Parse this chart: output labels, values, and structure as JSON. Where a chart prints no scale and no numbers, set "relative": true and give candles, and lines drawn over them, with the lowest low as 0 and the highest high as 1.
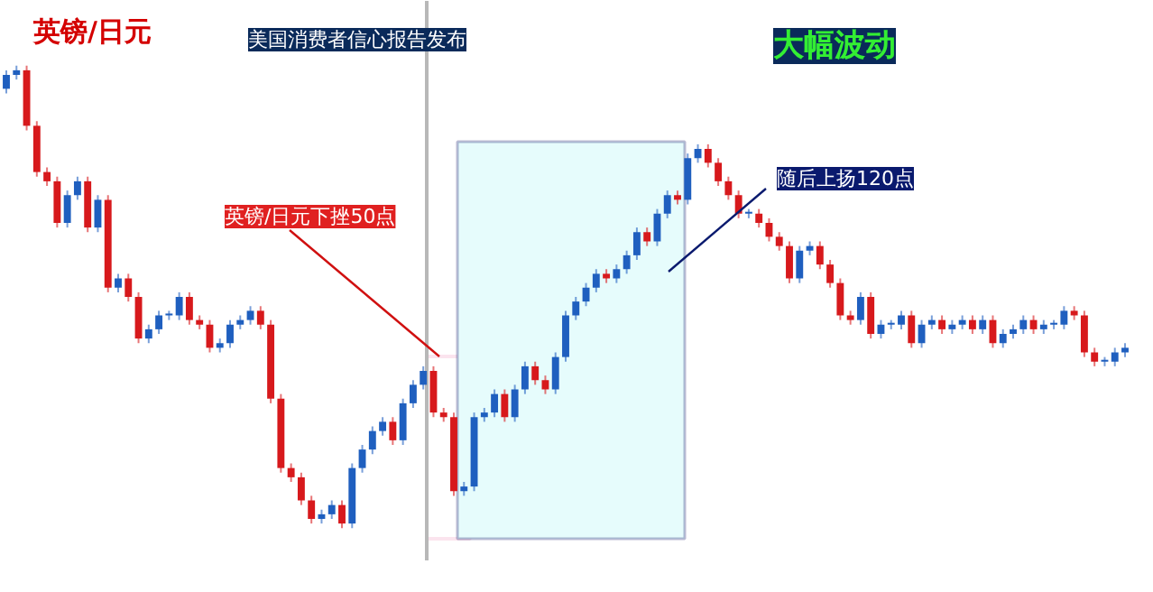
{
  "chart_data": {
    "type": "candlestick",
    "title": "英镑/日元",
    "relative": true,
    "tick_labels": false,
    "grid": false,
    "categories": [
      null,
      null,
      null,
      null,
      null,
      null,
      null,
      null,
      null,
      null,
      null,
      null,
      null,
      null,
      null,
      null,
      null,
      null,
      null,
      null,
      null,
      null,
      null,
      null,
      null,
      null,
      null,
      null,
      null,
      null,
      null,
      null,
      null,
      null,
      null,
      null,
      null,
      null,
      null,
      null,
      null,
      null,
      null,
      null,
      null,
      null,
      null,
      null,
      null,
      null,
      null,
      null,
      null,
      null,
      null,
      null,
      null,
      null,
      null,
      null,
      null,
      null,
      null,
      null,
      null,
      null,
      null,
      null,
      null,
      null,
      null,
      null,
      null,
      null,
      null,
      null,
      null,
      null,
      null,
      null,
      null,
      null,
      null,
      null,
      null,
      null,
      null,
      null,
      null,
      null,
      null,
      null,
      null,
      null,
      null,
      null,
      null,
      null,
      null,
      null,
      null,
      null,
      null,
      null,
      null,
      null,
      null,
      null,
      null,
      null,
      null
    ],
    "ohlc": [
      [
        0.95,
        0.99,
        0.94,
        0.98
      ],
      [
        0.98,
        1.0,
        0.97,
        0.99
      ],
      [
        0.99,
        1.0,
        0.86,
        0.87
      ],
      [
        0.87,
        0.88,
        0.76,
        0.77
      ],
      [
        0.77,
        0.78,
        0.74,
        0.75
      ],
      [
        0.75,
        0.76,
        0.65,
        0.66
      ],
      [
        0.66,
        0.73,
        0.65,
        0.72
      ],
      [
        0.72,
        0.76,
        0.71,
        0.75
      ],
      [
        0.75,
        0.76,
        0.64,
        0.65
      ],
      [
        0.65,
        0.72,
        0.64,
        0.71
      ],
      [
        0.71,
        0.72,
        0.51,
        0.52
      ],
      [
        0.52,
        0.55,
        0.51,
        0.54
      ],
      [
        0.54,
        0.55,
        0.49,
        0.5
      ],
      [
        0.5,
        0.51,
        0.4,
        0.41
      ],
      [
        0.41,
        0.44,
        0.4,
        0.43
      ],
      [
        0.43,
        0.47,
        0.42,
        0.46
      ],
      [
        0.46,
        0.47,
        0.45,
        0.46
      ],
      [
        0.46,
        0.51,
        0.45,
        0.5
      ],
      [
        0.5,
        0.51,
        0.44,
        0.45
      ],
      [
        0.45,
        0.46,
        0.43,
        0.44
      ],
      [
        0.44,
        0.45,
        0.38,
        0.39
      ],
      [
        0.39,
        0.41,
        0.38,
        0.4
      ],
      [
        0.4,
        0.45,
        0.39,
        0.44
      ],
      [
        0.44,
        0.46,
        0.43,
        0.45
      ],
      [
        0.45,
        0.48,
        0.44,
        0.47
      ],
      [
        0.47,
        0.48,
        0.43,
        0.44
      ],
      [
        0.44,
        0.45,
        0.27,
        0.28
      ],
      [
        0.28,
        0.29,
        0.12,
        0.13
      ],
      [
        0.13,
        0.14,
        0.1,
        0.11
      ],
      [
        0.11,
        0.12,
        0.05,
        0.06
      ],
      [
        0.06,
        0.07,
        0.01,
        0.02
      ],
      [
        0.02,
        0.04,
        0.01,
        0.03
      ],
      [
        0.03,
        0.06,
        0.02,
        0.05
      ],
      [
        0.05,
        0.06,
        0.0,
        0.01
      ],
      [
        0.01,
        0.14,
        0.0,
        0.13
      ],
      [
        0.13,
        0.18,
        0.12,
        0.17
      ],
      [
        0.17,
        0.22,
        0.16,
        0.21
      ],
      [
        0.21,
        0.24,
        0.2,
        0.23
      ],
      [
        0.23,
        0.24,
        0.18,
        0.19
      ],
      [
        0.19,
        0.28,
        0.18,
        0.27
      ],
      [
        0.27,
        0.32,
        0.26,
        0.31
      ],
      [
        0.31,
        0.35,
        0.3,
        0.34
      ],
      [
        0.34,
        0.35,
        0.24,
        0.25
      ],
      [
        0.25,
        0.26,
        0.23,
        0.24
      ],
      [
        0.24,
        0.25,
        0.07,
        0.08
      ],
      [
        0.08,
        0.1,
        0.07,
        0.09
      ],
      [
        0.09,
        0.25,
        0.08,
        0.24
      ],
      [
        0.24,
        0.26,
        0.23,
        0.25
      ],
      [
        0.25,
        0.3,
        0.24,
        0.29
      ],
      [
        0.29,
        0.3,
        0.23,
        0.24
      ],
      [
        0.24,
        0.31,
        0.23,
        0.3
      ],
      [
        0.3,
        0.36,
        0.29,
        0.35
      ],
      [
        0.35,
        0.36,
        0.31,
        0.32
      ],
      [
        0.32,
        0.33,
        0.29,
        0.3
      ],
      [
        0.3,
        0.38,
        0.29,
        0.37
      ],
      [
        0.37,
        0.47,
        0.36,
        0.46
      ],
      [
        0.46,
        0.5,
        0.45,
        0.49
      ],
      [
        0.49,
        0.53,
        0.48,
        0.52
      ],
      [
        0.52,
        0.56,
        0.51,
        0.55
      ],
      [
        0.55,
        0.56,
        0.53,
        0.54
      ],
      [
        0.54,
        0.57,
        0.53,
        0.56
      ],
      [
        0.56,
        0.6,
        0.55,
        0.59
      ],
      [
        0.59,
        0.65,
        0.58,
        0.64
      ],
      [
        0.64,
        0.65,
        0.61,
        0.62
      ],
      [
        0.62,
        0.69,
        0.61,
        0.68
      ],
      [
        0.68,
        0.73,
        0.67,
        0.72
      ],
      [
        0.72,
        0.73,
        0.7,
        0.71
      ],
      [
        0.71,
        0.81,
        0.7,
        0.8
      ],
      [
        0.8,
        0.83,
        0.79,
        0.82
      ],
      [
        0.82,
        0.83,
        0.78,
        0.79
      ],
      [
        0.79,
        0.8,
        0.74,
        0.75
      ],
      [
        0.75,
        0.76,
        0.71,
        0.72
      ],
      [
        0.72,
        0.73,
        0.67,
        0.68
      ],
      [
        0.68,
        0.69,
        0.67,
        0.68
      ],
      [
        0.68,
        0.69,
        0.65,
        0.66
      ],
      [
        0.66,
        0.67,
        0.62,
        0.63
      ],
      [
        0.63,
        0.64,
        0.6,
        0.61
      ],
      [
        0.61,
        0.62,
        0.53,
        0.54
      ],
      [
        0.54,
        0.61,
        0.53,
        0.6
      ],
      [
        0.6,
        0.62,
        0.59,
        0.61
      ],
      [
        0.61,
        0.62,
        0.56,
        0.57
      ],
      [
        0.57,
        0.58,
        0.52,
        0.53
      ],
      [
        0.53,
        0.54,
        0.45,
        0.46
      ],
      [
        0.46,
        0.47,
        0.44,
        0.45
      ],
      [
        0.45,
        0.51,
        0.44,
        0.5
      ],
      [
        0.5,
        0.51,
        0.41,
        0.42
      ],
      [
        0.42,
        0.45,
        0.41,
        0.44
      ],
      [
        0.44,
        0.45,
        0.43,
        0.44
      ],
      [
        0.44,
        0.47,
        0.43,
        0.46
      ],
      [
        0.46,
        0.47,
        0.39,
        0.4
      ],
      [
        0.4,
        0.45,
        0.39,
        0.44
      ],
      [
        0.44,
        0.46,
        0.43,
        0.45
      ],
      [
        0.45,
        0.46,
        0.42,
        0.43
      ],
      [
        0.43,
        0.45,
        0.42,
        0.44
      ],
      [
        0.44,
        0.46,
        0.43,
        0.45
      ],
      [
        0.45,
        0.46,
        0.42,
        0.43
      ],
      [
        0.43,
        0.46,
        0.42,
        0.45
      ],
      [
        0.45,
        0.46,
        0.39,
        0.4
      ],
      [
        0.4,
        0.43,
        0.39,
        0.42
      ],
      [
        0.42,
        0.44,
        0.41,
        0.43
      ],
      [
        0.43,
        0.46,
        0.42,
        0.45
      ],
      [
        0.45,
        0.46,
        0.42,
        0.43
      ],
      [
        0.43,
        0.45,
        0.42,
        0.44
      ],
      [
        0.44,
        0.45,
        0.43,
        0.44
      ],
      [
        0.44,
        0.48,
        0.43,
        0.47
      ],
      [
        0.47,
        0.48,
        0.45,
        0.46
      ],
      [
        0.46,
        0.47,
        0.37,
        0.38
      ],
      [
        0.38,
        0.39,
        0.35,
        0.36
      ],
      [
        0.36,
        0.37,
        0.35,
        0.36
      ],
      [
        0.36,
        0.39,
        0.35,
        0.38
      ],
      [
        0.38,
        0.4,
        0.37,
        0.39
      ]
    ],
    "colors": [
      "#1f5fbf",
      "#1f5fbf",
      "#d7191c",
      "#d7191c",
      "#d7191c",
      "#d7191c",
      "#1f5fbf",
      "#1f5fbf",
      "#d7191c",
      "#1f5fbf",
      "#d7191c",
      "#1f5fbf",
      "#d7191c",
      "#d7191c",
      "#1f5fbf",
      "#1f5fbf",
      "#1f5fbf",
      "#1f5fbf",
      "#d7191c",
      "#d7191c",
      "#d7191c",
      "#1f5fbf",
      "#1f5fbf",
      "#1f5fbf",
      "#1f5fbf",
      "#d7191c",
      "#d7191c",
      "#d7191c",
      "#d7191c",
      "#d7191c",
      "#d7191c",
      "#1f5fbf",
      "#1f5fbf",
      "#d7191c",
      "#1f5fbf",
      "#1f5fbf",
      "#1f5fbf",
      "#1f5fbf",
      "#d7191c",
      "#1f5fbf",
      "#1f5fbf",
      "#1f5fbf",
      "#d7191c",
      "#d7191c",
      "#d7191c",
      "#1f5fbf",
      "#1f5fbf",
      "#1f5fbf",
      "#1f5fbf",
      "#d7191c",
      "#1f5fbf",
      "#1f5fbf",
      "#d7191c",
      "#d7191c",
      "#1f5fbf",
      "#1f5fbf",
      "#1f5fbf",
      "#1f5fbf",
      "#1f5fbf",
      "#d7191c",
      "#1f5fbf",
      "#1f5fbf",
      "#1f5fbf",
      "#d7191c",
      "#1f5fbf",
      "#1f5fbf",
      "#d7191c",
      "#1f5fbf",
      "#1f5fbf",
      "#d7191c",
      "#d7191c",
      "#d7191c",
      "#d7191c",
      "#1f5fbf",
      "#d7191c",
      "#d7191c",
      "#d7191c",
      "#d7191c",
      "#1f5fbf",
      "#1f5fbf",
      "#d7191c",
      "#d7191c",
      "#d7191c",
      "#d7191c",
      "#1f5fbf",
      "#d7191c",
      "#1f5fbf",
      "#1f5fbf",
      "#1f5fbf",
      "#d7191c",
      "#1f5fbf",
      "#1f5fbf",
      "#d7191c",
      "#1f5fbf",
      "#1f5fbf",
      "#d7191c",
      "#1f5fbf",
      "#d7191c",
      "#1f5fbf",
      "#1f5fbf",
      "#1f5fbf",
      "#d7191c",
      "#1f5fbf",
      "#1f5fbf",
      "#1f5fbf",
      "#d7191c",
      "#d7191c",
      "#d7191c",
      "#1f5fbf",
      "#1f5fbf",
      "#1f5fbf"
    ],
    "annotations": [
      "美国消费者信心报告发布",
      "大幅波动",
      "英镑/日元下挫50点",
      "随后上扬120点"
    ]
  }
}
